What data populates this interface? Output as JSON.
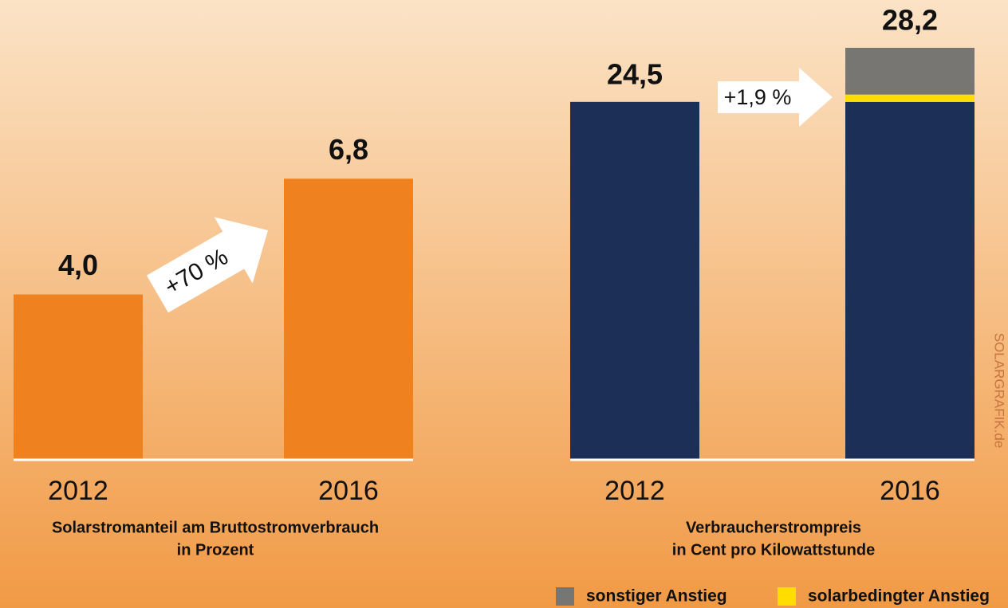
{
  "chart_data": [
    {
      "type": "bar",
      "categories": [
        "2012",
        "2016"
      ],
      "values": [
        4.0,
        6.8
      ],
      "value_labels": [
        "4,0",
        "6,8"
      ],
      "color": "#ef821f",
      "ylim": [
        0,
        8
      ],
      "annotation": "+70 %",
      "xlabel": [
        "Solarstromanteil am Bruttostromverbrauch",
        "in Prozent"
      ]
    },
    {
      "type": "stacked_bar",
      "categories": [
        "2012",
        "2016"
      ],
      "series": [
        {
          "color": "#1c2f57",
          "values": [
            24.5,
            24.5
          ]
        },
        {
          "name": "solarbedingter Anstieg",
          "color": "#ffdd00",
          "values": [
            0,
            0.5
          ]
        },
        {
          "name": "sonstiger Anstieg",
          "color": "#777672",
          "values": [
            0,
            3.2
          ]
        }
      ],
      "totals": [
        24.5,
        28.2
      ],
      "total_labels": [
        "24,5",
        "28,2"
      ],
      "ylim": [
        0,
        30
      ],
      "annotation": "+1,9 %",
      "xlabel": [
        "Verbraucherstrompreis",
        "in Cent pro Kilowattstunde"
      ]
    }
  ],
  "watermark": "SOLARGRAFIK.de"
}
